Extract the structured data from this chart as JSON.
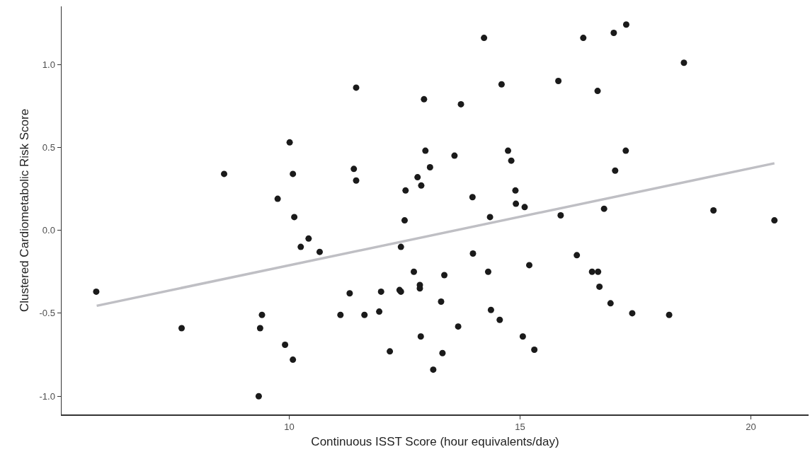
{
  "chart_data": {
    "type": "scatter",
    "xlabel": "Continuous ISST Score (hour equivalents/day)",
    "ylabel": "Clustered Cardiometabolic Risk Score",
    "x": [
      5.82,
      7.67,
      8.59,
      9.34,
      9.37,
      9.41,
      9.75,
      9.91,
      10.01,
      10.08,
      10.08,
      10.11,
      10.25,
      10.42,
      10.66,
      11.45,
      11.4,
      11.45,
      11.11,
      11.31,
      11.63,
      11.99,
      11.95,
      12.18,
      12.39,
      12.42,
      12.42,
      12.5,
      12.52,
      12.7,
      12.78,
      12.86,
      12.83,
      12.83,
      12.85,
      12.92,
      12.95,
      13.05,
      13.12,
      13.32,
      13.29,
      13.36,
      13.58,
      13.66,
      13.72,
      13.97,
      13.98,
      14.22,
      14.31,
      14.35,
      14.37,
      14.56,
      14.6,
      14.74,
      14.81,
      14.9,
      14.91,
      15.06,
      15.1,
      15.2,
      15.31,
      15.83,
      15.88,
      16.23,
      16.37,
      16.56,
      16.69,
      16.68,
      16.72,
      16.82,
      16.96,
      17.03,
      17.06,
      17.29,
      17.3,
      17.43,
      18.23,
      18.55,
      19.19,
      20.51
    ],
    "series": [
      {
        "color": "#1a1a1a",
        "marker": "circle",
        "values": [
          -0.37,
          -0.59,
          0.34,
          -1.0,
          -0.59,
          -0.51,
          0.19,
          -0.69,
          0.53,
          0.34,
          -0.78,
          0.08,
          -0.1,
          -0.05,
          -0.13,
          0.86,
          0.37,
          0.3,
          -0.51,
          -0.38,
          -0.51,
          -0.37,
          -0.49,
          -0.73,
          -0.36,
          -0.37,
          -0.1,
          0.06,
          0.24,
          -0.25,
          0.32,
          0.27,
          -0.33,
          -0.35,
          -0.64,
          0.79,
          0.48,
          0.38,
          -0.84,
          -0.74,
          -0.43,
          -0.27,
          0.45,
          -0.58,
          0.76,
          0.2,
          -0.14,
          1.16,
          -0.25,
          0.08,
          -0.48,
          -0.54,
          0.88,
          0.48,
          0.42,
          0.24,
          0.16,
          -0.64,
          0.14,
          -0.21,
          -0.72,
          0.9,
          0.09,
          -0.15,
          1.16,
          -0.25,
          -0.25,
          0.84,
          -0.34,
          0.13,
          -0.44,
          1.19,
          0.36,
          0.48,
          1.24,
          -0.5,
          -0.51,
          1.01,
          0.12,
          0.06
        ]
      },
      {
        "type": "line",
        "color": "#bfbfc4",
        "marker": "none",
        "line_style": "solid",
        "x": [
          5.83,
          20.51
        ],
        "values": [
          -0.455,
          0.404
        ]
      }
    ],
    "xlim": [
      5.07,
      21.25
    ],
    "ylim": [
      -1.11,
      1.35
    ],
    "xticks": [
      10,
      15,
      20
    ],
    "yticks": [
      {
        "value": -1,
        "label": "-1.0"
      },
      {
        "value": -0.5,
        "label": "-0.5"
      },
      {
        "value": 0,
        "label": "0.0"
      },
      {
        "value": 0.5,
        "label": "0.5"
      },
      {
        "value": 1,
        "label": "1.0"
      }
    ],
    "grid": false
  }
}
